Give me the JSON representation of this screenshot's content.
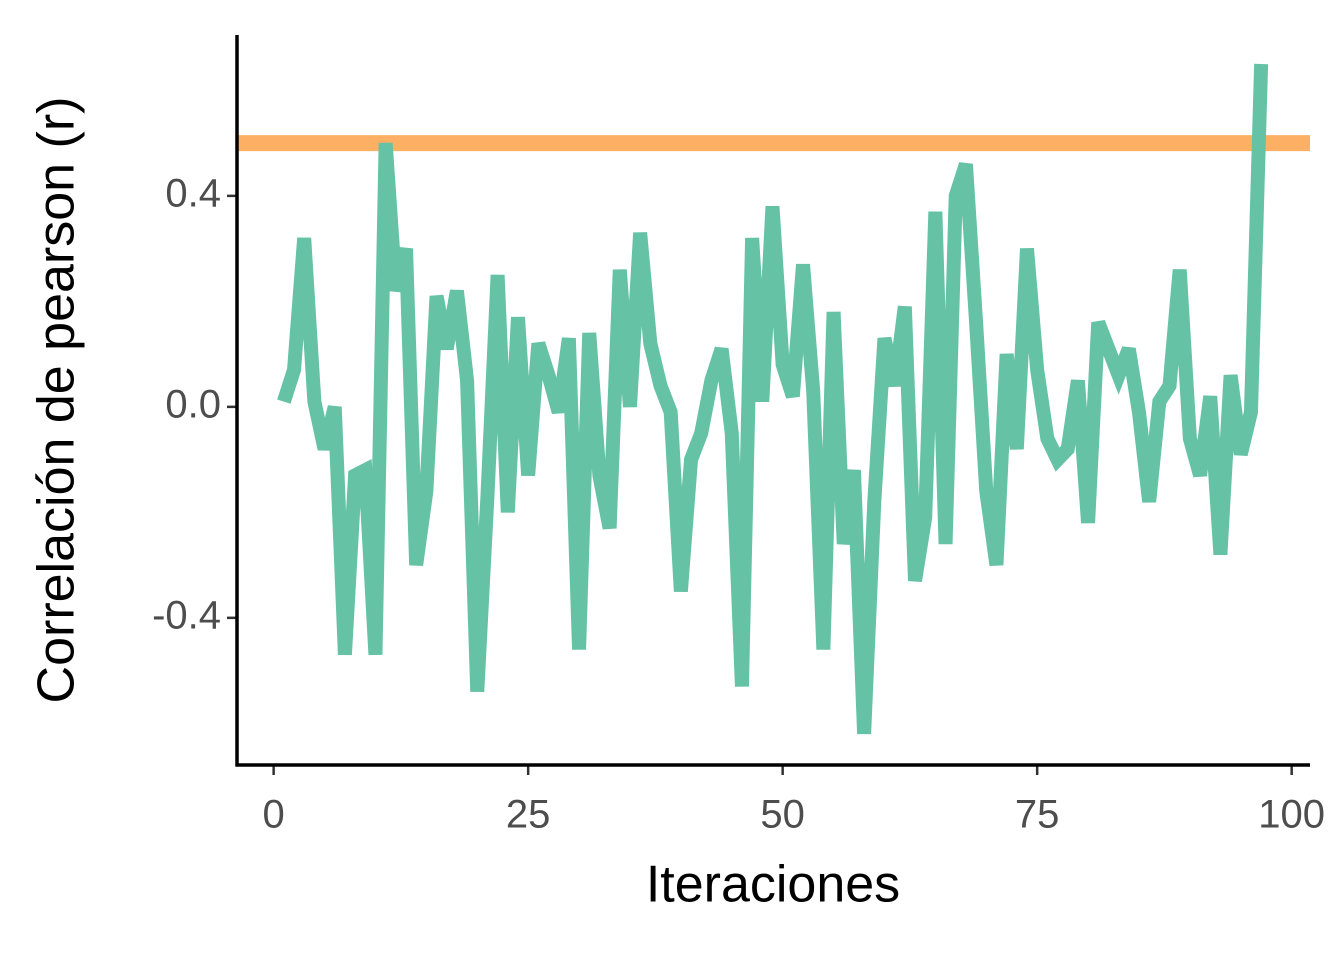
{
  "chart_data": {
    "type": "line",
    "x_label": "Iteraciones",
    "y_label": "Correlación de pearson (r)",
    "x": [
      1,
      2,
      3,
      4,
      5,
      6,
      7,
      8,
      9,
      10,
      11,
      12,
      13,
      14,
      15,
      16,
      17,
      18,
      19,
      20,
      21,
      22,
      23,
      24,
      25,
      26,
      27,
      28,
      29,
      30,
      31,
      32,
      33,
      34,
      35,
      36,
      37,
      38,
      39,
      40,
      41,
      42,
      43,
      44,
      45,
      46,
      47,
      48,
      49,
      50,
      51,
      52,
      53,
      54,
      55,
      56,
      57,
      58,
      59,
      60,
      61,
      62,
      63,
      64,
      65,
      66,
      67,
      68,
      69,
      70,
      71,
      72,
      73,
      74,
      75,
      76,
      77,
      78,
      79,
      80,
      81,
      82,
      83,
      84,
      85,
      86,
      87,
      88,
      89,
      90,
      91,
      92,
      93,
      94,
      95,
      96,
      97
    ],
    "series": [
      {
        "color": "#66c2a5",
        "values": [
          0.01,
          0.07,
          0.32,
          0.01,
          -0.08,
          0.0,
          -0.47,
          -0.13,
          -0.12,
          -0.47,
          0.5,
          0.22,
          0.3,
          -0.3,
          -0.16,
          0.21,
          0.11,
          0.22,
          0.05,
          -0.54,
          -0.17,
          0.25,
          -0.2,
          0.17,
          -0.13,
          0.12,
          0.06,
          -0.01,
          0.13,
          -0.46,
          0.14,
          -0.13,
          -0.23,
          0.26,
          0.0,
          0.33,
          0.12,
          0.04,
          -0.01,
          -0.35,
          -0.1,
          -0.05,
          0.05,
          0.11,
          -0.05,
          -0.53,
          0.32,
          0.01,
          0.38,
          0.08,
          0.02,
          0.27,
          0.03,
          -0.46,
          0.18,
          -0.26,
          -0.12,
          -0.62,
          -0.18,
          0.13,
          0.04,
          0.19,
          -0.33,
          -0.21,
          0.37,
          -0.26,
          0.4,
          0.46,
          0.16,
          -0.16,
          -0.3,
          0.1,
          -0.08,
          0.3,
          0.07,
          -0.06,
          -0.1,
          -0.08,
          0.05,
          -0.22,
          0.16,
          0.11,
          0.06,
          0.11,
          -0.01,
          -0.18,
          0.01,
          0.04,
          0.26,
          -0.06,
          -0.13,
          0.02,
          -0.28,
          0.06,
          -0.09,
          -0.01,
          0.65
        ]
      }
    ],
    "hline": {
      "value": 0.5,
      "color": "#fdb063"
    },
    "xlim": [
      -3.6,
      101.8
    ],
    "ylim": [
      -0.679,
      0.705
    ],
    "xticks": [
      0,
      25,
      50,
      75,
      100
    ],
    "yticks": [
      {
        "value": -0.4,
        "label": "-0.4"
      },
      {
        "value": 0,
        "label": "0.0"
      },
      {
        "value": 0.4,
        "label": "0.4"
      }
    ]
  }
}
